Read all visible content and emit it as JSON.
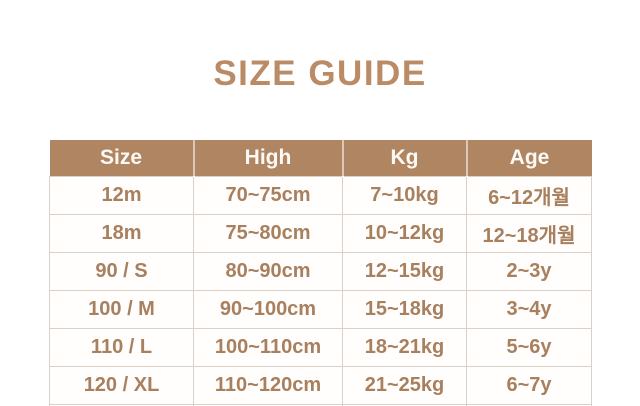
{
  "title": "SIZE GUIDE",
  "colors": {
    "title_color": "#ba8b64",
    "header_bg": "#b08562",
    "header_text": "#fdfaf5",
    "body_text": "#a8805e",
    "border_color": "#dbd0c6",
    "page_bg": "#ffffff"
  },
  "table": {
    "headers": [
      "Size",
      "High",
      "Kg",
      "Age"
    ],
    "rows": [
      [
        "12m",
        "70~75cm",
        "7~10kg",
        "6~12개월"
      ],
      [
        "18m",
        "75~80cm",
        "10~12kg",
        "12~18개월"
      ],
      [
        "90 / S",
        "80~90cm",
        "12~15kg",
        "2~3y"
      ],
      [
        "100 / M",
        "90~100cm",
        "15~18kg",
        "3~4y"
      ],
      [
        "110 / L",
        "100~110cm",
        "18~21kg",
        "5~6y"
      ],
      [
        "120 / XL",
        "110~120cm",
        "21~25kg",
        "6~7y"
      ]
    ]
  }
}
